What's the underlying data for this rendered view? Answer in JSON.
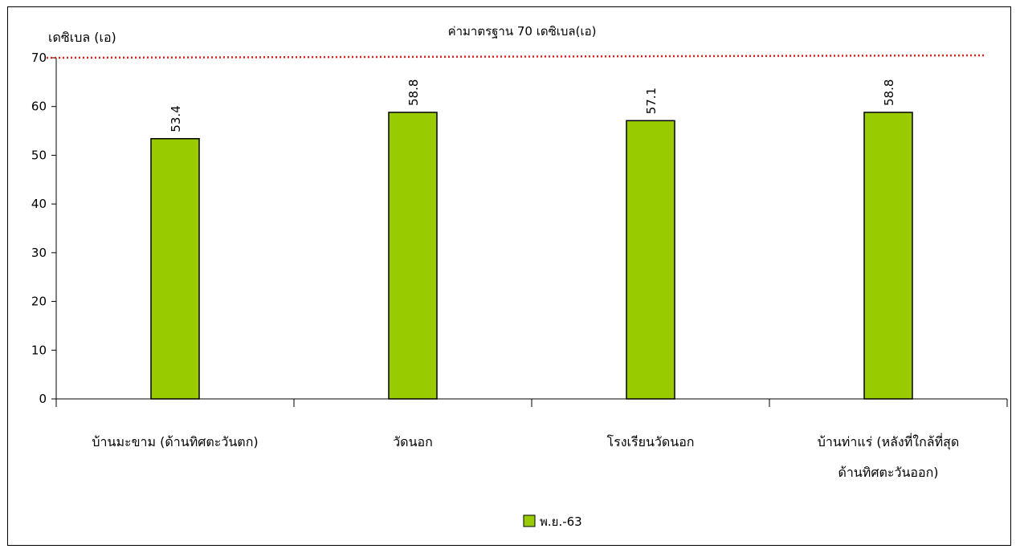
{
  "chart_data": {
    "type": "bar",
    "ylabel": "เดซิเบล (เอ)",
    "ylim": [
      0,
      70
    ],
    "yticks": [
      0,
      10,
      20,
      30,
      40,
      50,
      60,
      70
    ],
    "categories": [
      [
        "บ้านมะขาม (ด้านทิศตะวันตก)"
      ],
      [
        "วัดนอก"
      ],
      [
        "โรงเรียนวัดนอก"
      ],
      [
        "บ้านท่าแร่ (หลังที่ใกล้ที่สุด",
        "ด้านทิศตะวันออก)"
      ]
    ],
    "series": [
      {
        "name": "พ.ย.-63",
        "values": [
          53.4,
          58.8,
          57.1,
          58.8
        ],
        "color": "#99cc00"
      }
    ],
    "value_labels": [
      "53.4",
      "58.8",
      "57.1",
      "58.8"
    ],
    "reference_line": {
      "value": 70,
      "label": "ค่ามาตรฐาน 70 เดซิเบล(เอ)",
      "color": "#e0201b"
    },
    "grid": false,
    "legend": "bottom-center"
  }
}
